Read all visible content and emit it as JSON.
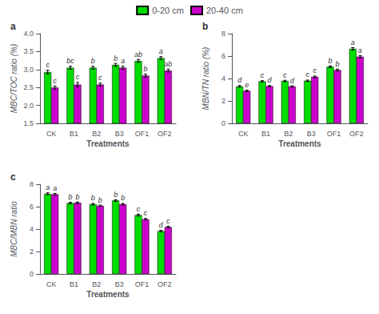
{
  "chart_data": [
    {
      "type": "bar",
      "title": "a",
      "xlabel": "Treatments",
      "ylabel": "MBC/TOC ratio (%)",
      "categories": [
        "CK",
        "B1",
        "B2",
        "B3",
        "OF1",
        "OF2"
      ],
      "ylim": [
        1.5,
        4.0
      ],
      "yticks": [
        1.5,
        {
          "value": 2.0,
          "label": "2.0"
        },
        2.5,
        {
          "value": 3.0,
          "label": "3.0"
        },
        3.5,
        {
          "value": 4.0,
          "label": "4.0"
        }
      ],
      "grid": false,
      "legend": "top",
      "series": [
        {
          "name": "0-20 cm",
          "color": "#00DD00",
          "values": [
            2.93,
            3.05,
            3.05,
            3.13,
            3.24,
            3.32
          ],
          "errors": [
            0.05,
            0.04,
            0.04,
            0.04,
            0.04,
            0.04
          ],
          "annotations": [
            "c",
            "bc",
            "b",
            "b",
            "ab",
            "a"
          ]
        },
        {
          "name": "20-40 cm",
          "color": "#CC00CC",
          "values": [
            2.5,
            2.58,
            2.58,
            3.05,
            2.83,
            2.97
          ],
          "errors": [
            0.04,
            0.06,
            0.04,
            0.04,
            0.04,
            0.04
          ],
          "annotations": [
            "c",
            "c",
            "c",
            "a",
            "b",
            "ab"
          ]
        }
      ]
    },
    {
      "type": "bar",
      "title": "b",
      "xlabel": "Treatments",
      "ylabel": "MBN/TN ratio (%)",
      "categories": [
        "CK",
        "B1",
        "B2",
        "B3",
        "OF1",
        "OF2"
      ],
      "ylim": [
        0,
        8
      ],
      "yticks": [
        0,
        2,
        4,
        6,
        8
      ],
      "grid": false,
      "legend": "top",
      "series": [
        {
          "name": "0-20 cm",
          "color": "#00DD00",
          "values": [
            3.3,
            3.75,
            3.78,
            3.8,
            5.05,
            6.65
          ],
          "errors": [
            0.07,
            0.06,
            0.06,
            0.06,
            0.08,
            0.1
          ],
          "annotations": [
            "d",
            "c",
            "c",
            "c",
            "b",
            "a"
          ]
        },
        {
          "name": "20-40 cm",
          "color": "#CC00CC",
          "values": [
            2.9,
            3.32,
            3.3,
            4.15,
            4.75,
            5.95
          ],
          "errors": [
            0.06,
            0.05,
            0.05,
            0.07,
            0.08,
            0.1
          ],
          "annotations": [
            "e",
            "d",
            "d",
            "c",
            "b",
            "a"
          ]
        }
      ]
    },
    {
      "type": "bar",
      "title": "c",
      "xlabel": "Treatments",
      "ylabel": "MBC/MBN ratio",
      "categories": [
        "CK",
        "B1",
        "B2",
        "B3",
        "OF1",
        "OF2"
      ],
      "ylim": [
        0,
        8
      ],
      "yticks": [
        0,
        2,
        4,
        6,
        8
      ],
      "grid": false,
      "legend": "top",
      "series": [
        {
          "name": "0-20 cm",
          "color": "#00DD00",
          "values": [
            7.15,
            6.32,
            6.22,
            6.55,
            5.25,
            3.82
          ],
          "errors": [
            0.08,
            0.07,
            0.07,
            0.07,
            0.08,
            0.07
          ],
          "annotations": [
            "a",
            "b",
            "b",
            "b",
            "c",
            "d"
          ]
        },
        {
          "name": "20-40 cm",
          "color": "#CC00CC",
          "values": [
            7.1,
            6.35,
            6.08,
            6.22,
            4.88,
            4.18
          ],
          "errors": [
            0.08,
            0.07,
            0.06,
            0.07,
            0.07,
            0.07
          ],
          "annotations": [
            "a",
            "b",
            "b",
            "b",
            "c",
            "c"
          ]
        }
      ]
    }
  ]
}
